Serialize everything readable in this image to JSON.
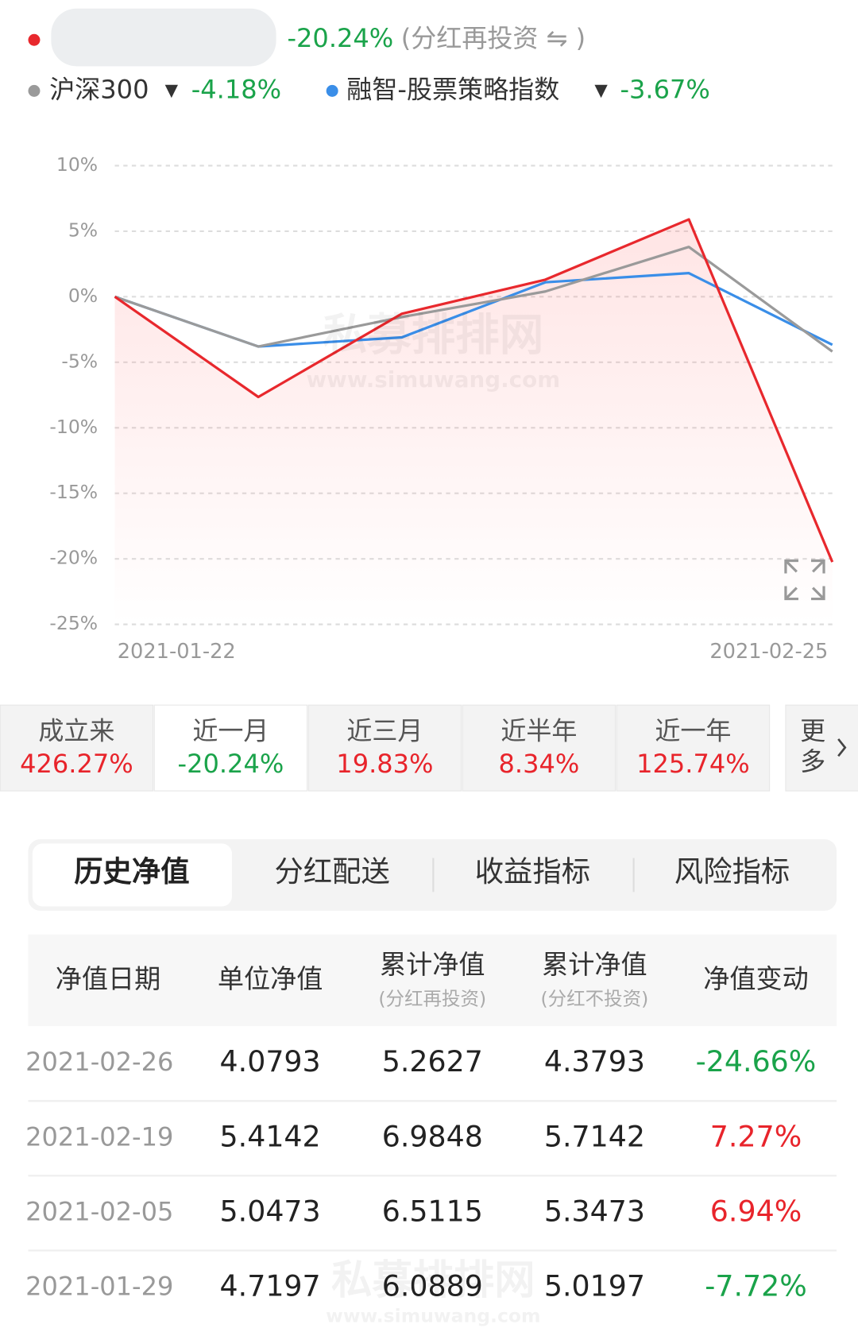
{
  "legend": {
    "main_change": "-20.24%",
    "main_note": "(分红再投资 ⇋ )",
    "items": [
      {
        "name": "沪深300",
        "arrow": "▼",
        "change": "-4.18%"
      },
      {
        "name": "融智-股票策略指数",
        "arrow": "▼",
        "change": "-3.67%"
      }
    ]
  },
  "chart_data": {
    "type": "line",
    "categories": [
      "2021-01-22",
      null,
      null,
      null,
      null,
      "2021-02-25"
    ],
    "series": [
      {
        "color": "#e8282d",
        "values": [
          0,
          -7.65,
          -1.3,
          1.3,
          5.9,
          -20.24
        ]
      },
      {
        "name": "沪深300",
        "color": "#9a9a9a",
        "values": [
          0,
          -3.8,
          -1.55,
          0.4,
          3.8,
          -4.18
        ]
      },
      {
        "name": "融智-股票策略指数",
        "color": "#3a8ee8",
        "values": [
          0,
          -3.8,
          -3.1,
          1.1,
          1.8,
          -3.67
        ]
      }
    ],
    "ylim": [
      -25,
      10
    ],
    "yticks": [
      {
        "value": 10,
        "label": "10%"
      },
      {
        "value": 5,
        "label": "5%"
      },
      {
        "value": 0,
        "label": "0%"
      },
      {
        "value": -5,
        "label": "-5%"
      },
      {
        "value": -10,
        "label": "-10%"
      },
      {
        "value": -15,
        "label": "-15%"
      },
      {
        "value": -20,
        "label": "-20%"
      },
      {
        "value": -25,
        "label": "-25%"
      }
    ],
    "grid": true,
    "area_series": 0
  },
  "watermark": {
    "name": "私募排排网",
    "url": "www.simuwang.com"
  },
  "periods": [
    {
      "label": "成立来",
      "value": "426.27%"
    },
    {
      "label": "近一月",
      "value": "-20.24%",
      "selected": true
    },
    {
      "label": "近三月",
      "value": "19.83%"
    },
    {
      "label": "近半年",
      "value": "8.34%"
    },
    {
      "label": "近一年",
      "value": "125.74%"
    }
  ],
  "more": [
    "更",
    "多"
  ],
  "tabs": [
    "历史净值",
    "分红配送",
    "收益指标",
    "风险指标"
  ],
  "table": {
    "header": [
      {
        "text": "净值日期"
      },
      {
        "text": "单位净值"
      },
      {
        "text": "累计净值",
        "sub": "(分红再投资)"
      },
      {
        "text": "累计净值",
        "sub": "(分红不投资)"
      },
      {
        "text": "净值变动"
      }
    ],
    "rows": [
      [
        "2021-02-26",
        "4.0793",
        "5.2627",
        "4.3793",
        "-24.66%"
      ],
      [
        "2021-02-19",
        "5.4142",
        "6.9848",
        "5.7142",
        "7.27%"
      ],
      [
        "2021-02-05",
        "5.0473",
        "6.5115",
        "5.3473",
        "6.94%"
      ],
      [
        "2021-01-29",
        "4.7197",
        "6.0889",
        "5.0197",
        "-7.72%"
      ]
    ]
  }
}
